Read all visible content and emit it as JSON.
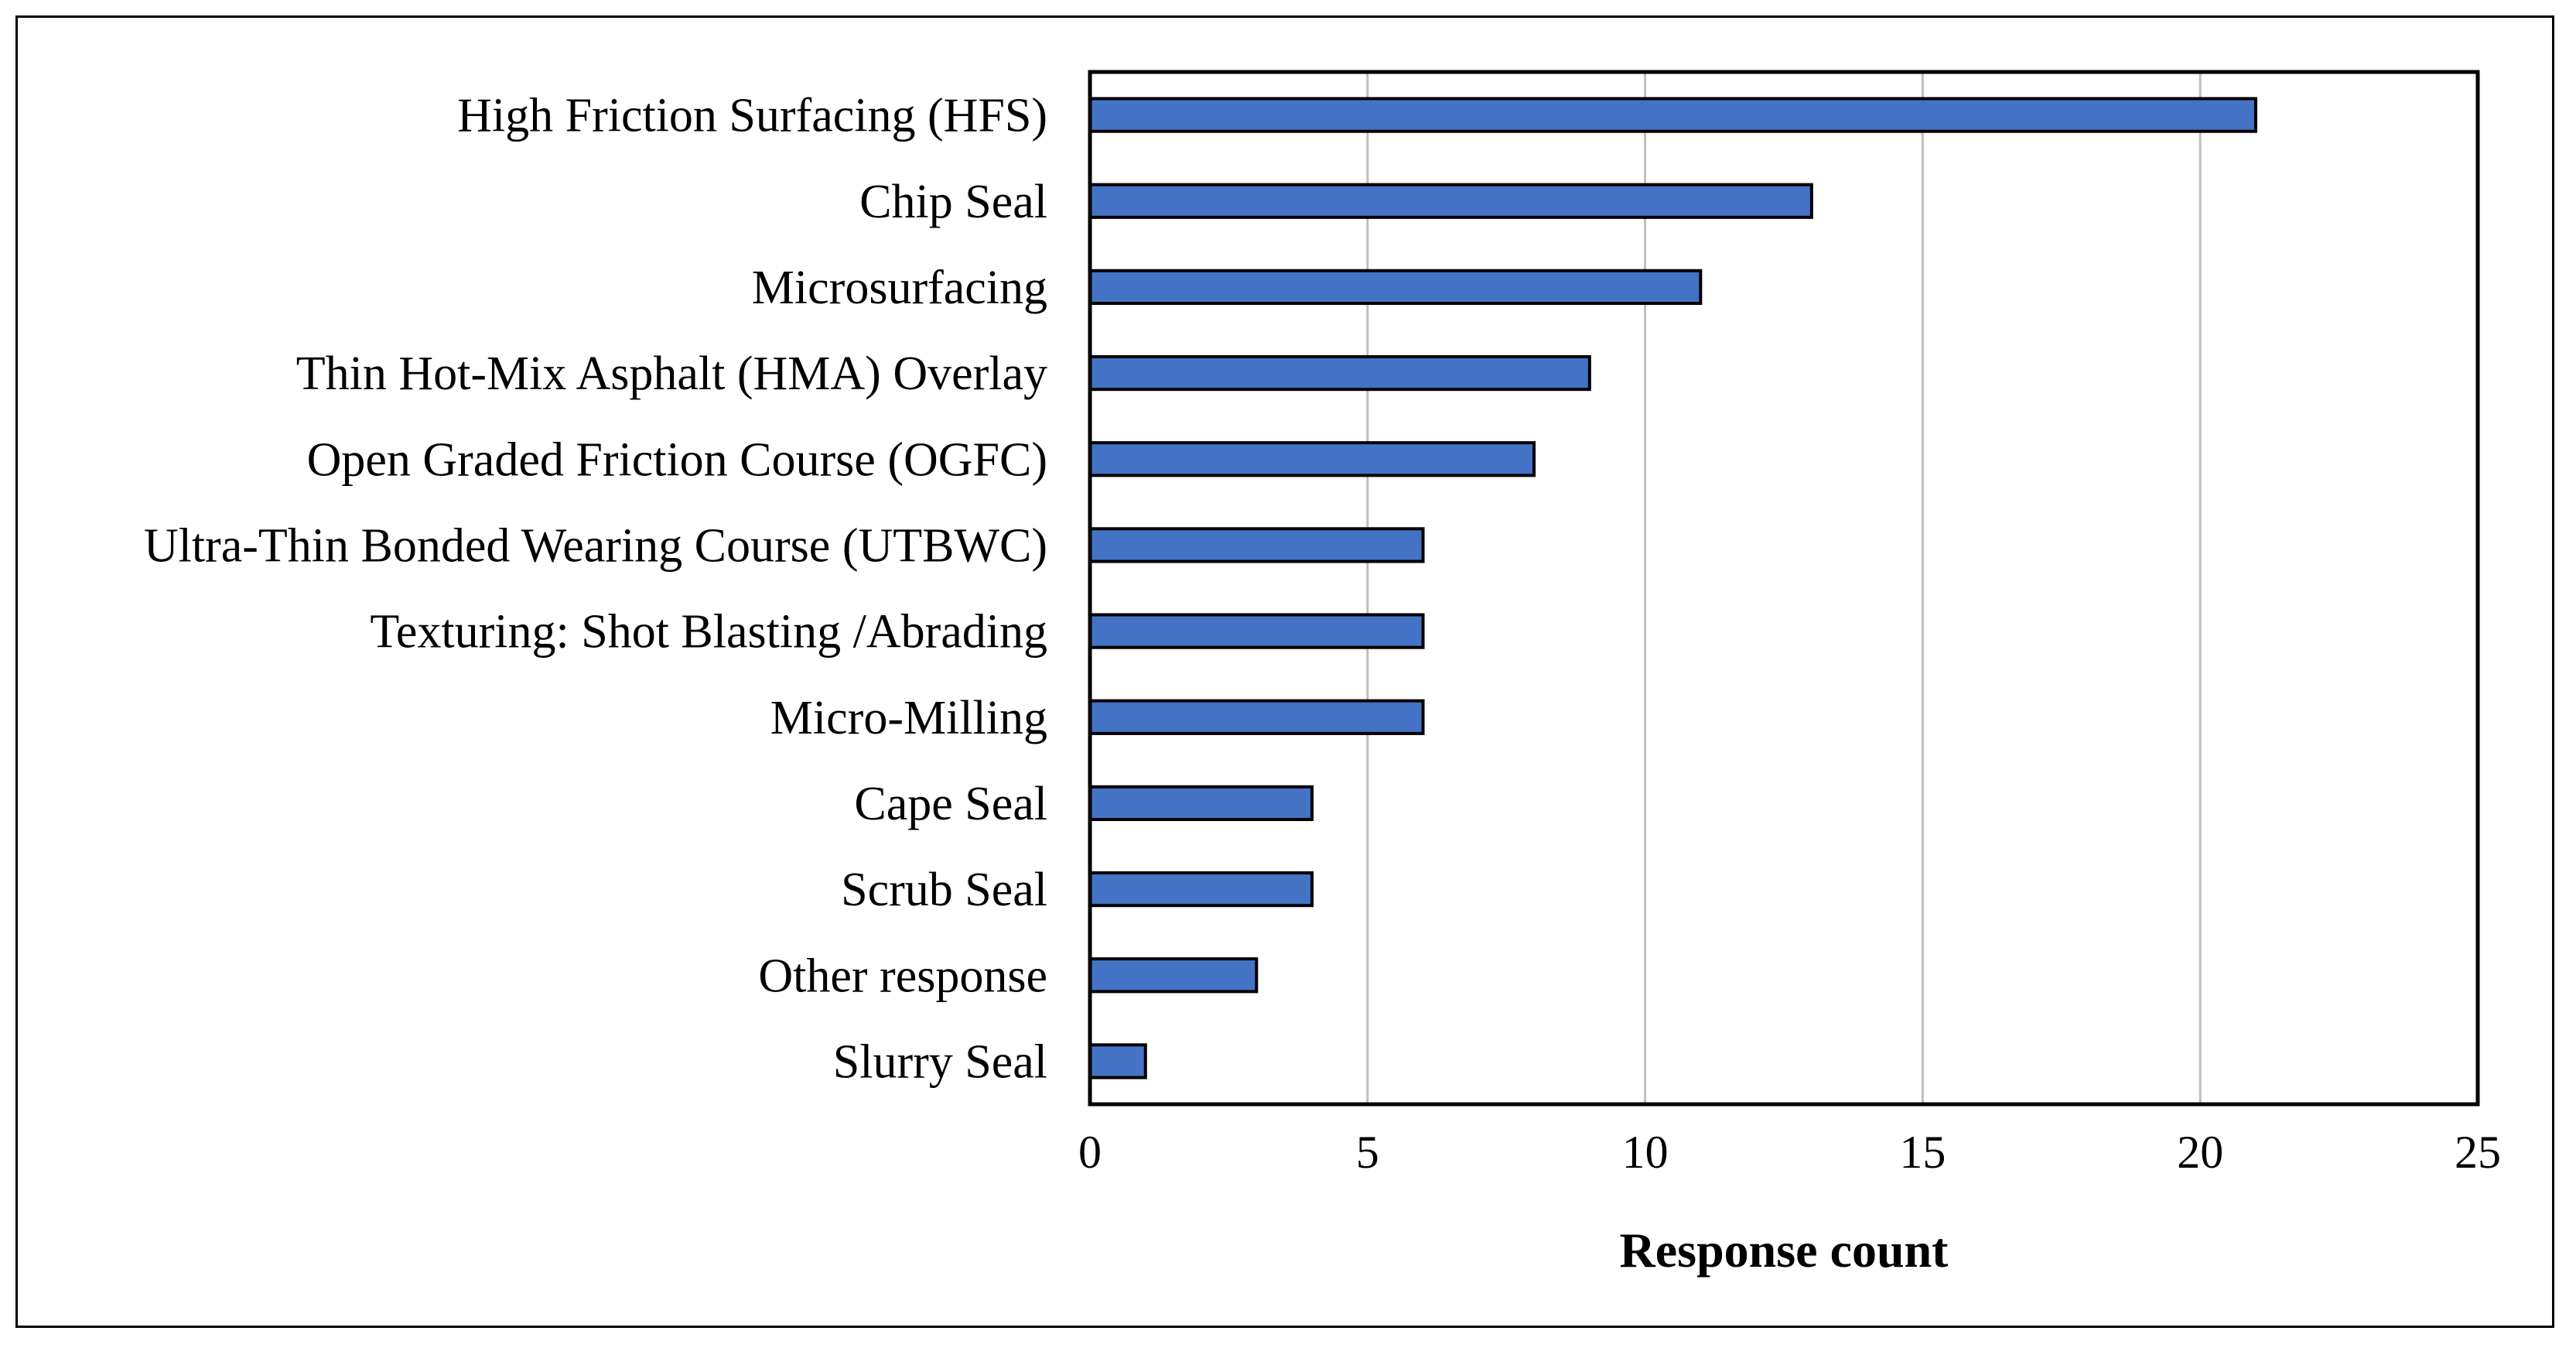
{
  "chart_data": {
    "type": "bar",
    "orientation": "horizontal",
    "categories": [
      "High Friction Surfacing (HFS)",
      "Chip Seal",
      "Microsurfacing",
      "Thin Hot-Mix Asphalt (HMA) Overlay",
      "Open Graded Friction Course (OGFC)",
      "Ultra-Thin Bonded Wearing Course (UTBWC)",
      "Texturing: Shot Blasting /Abrading",
      "Micro-Milling",
      "Cape Seal",
      "Scrub Seal",
      "Other response",
      "Slurry Seal"
    ],
    "values": [
      21,
      13,
      11,
      9,
      8,
      6,
      6,
      6,
      4,
      4,
      3,
      1
    ],
    "xlabel": "Response count",
    "ylabel": "",
    "xlim": [
      0,
      25
    ],
    "xticks": [
      "0",
      "5",
      "10",
      "15",
      "20",
      "25"
    ],
    "grid": "vertical",
    "bar_color": "#4472C4",
    "legend": "none"
  }
}
